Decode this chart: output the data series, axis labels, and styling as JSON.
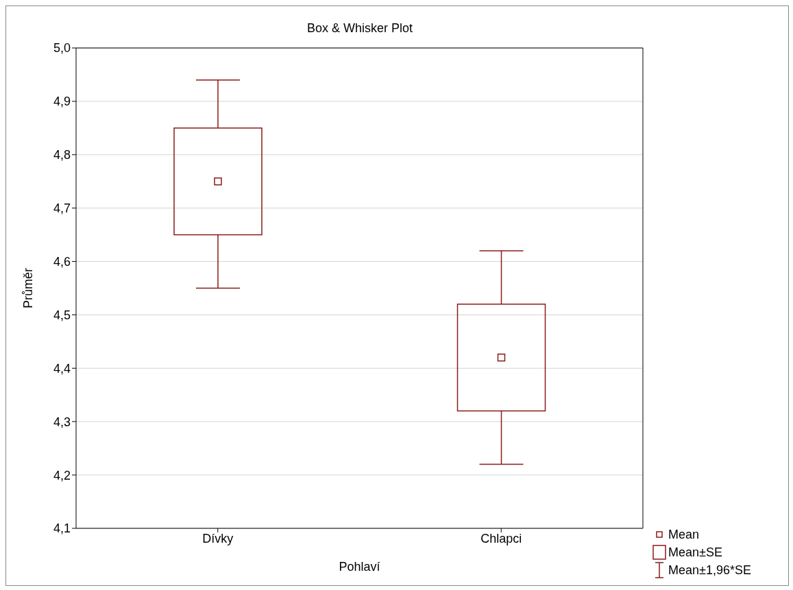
{
  "chart_data": {
    "type": "box",
    "title": "Box & Whisker Plot",
    "xlabel": "Pohlaví",
    "ylabel": "Průměr",
    "categories": [
      "Dívky",
      "Chlapci"
    ],
    "boxes": [
      {
        "low": 4.55,
        "q1": 4.65,
        "q3": 4.85,
        "high": 4.94,
        "mean": 4.75
      },
      {
        "low": 4.22,
        "q1": 4.32,
        "q3": 4.52,
        "high": 4.62,
        "mean": 4.42
      }
    ],
    "color": "#8b1a1a",
    "ylim": [
      4.1,
      5.0
    ],
    "yticks": [
      {
        "value": 4.1,
        "label": "4,1"
      },
      {
        "value": 4.2,
        "label": "4,2"
      },
      {
        "value": 4.3,
        "label": "4,3"
      },
      {
        "value": 4.4,
        "label": "4,4"
      },
      {
        "value": 4.5,
        "label": "4,5"
      },
      {
        "value": 4.6,
        "label": "4,6"
      },
      {
        "value": 4.7,
        "label": "4,7"
      },
      {
        "value": 4.8,
        "label": "4,8"
      },
      {
        "value": 4.9,
        "label": "4,9"
      },
      {
        "value": 5.0,
        "label": "5,0"
      }
    ],
    "grid": "y",
    "annotations": [
      "Mean",
      "Mean±SE",
      "Mean±1,96*SE"
    ]
  }
}
